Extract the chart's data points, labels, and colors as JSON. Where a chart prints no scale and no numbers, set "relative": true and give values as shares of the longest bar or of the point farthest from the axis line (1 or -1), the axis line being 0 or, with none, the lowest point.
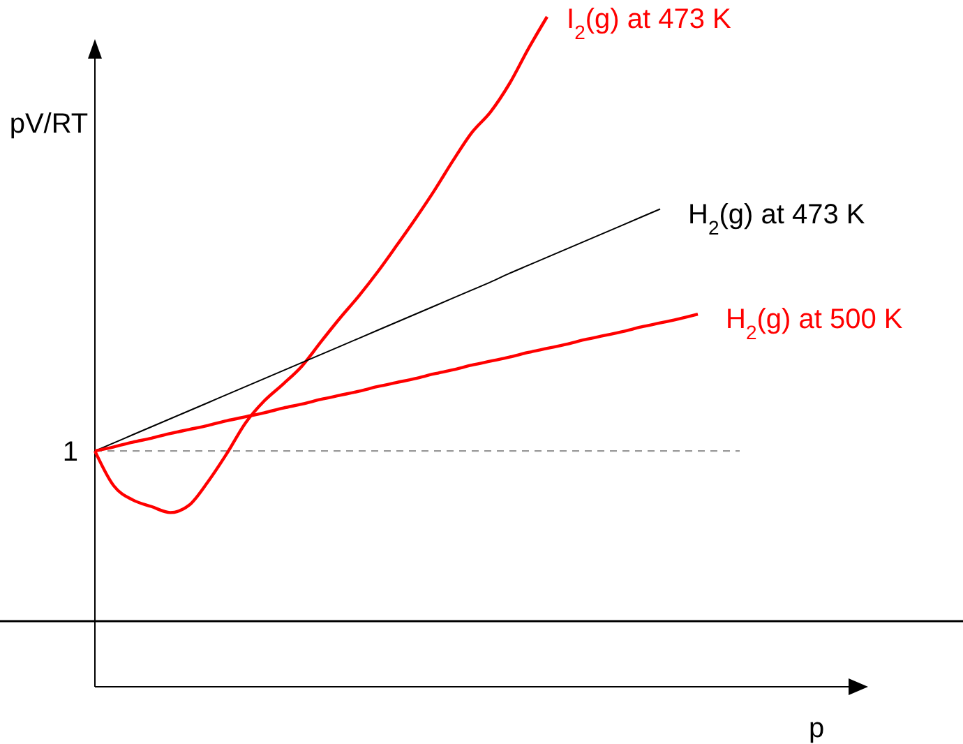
{
  "chart_data": {
    "type": "line",
    "relative": true,
    "xlabel": "p",
    "ylabel": "pV/RT",
    "categories": [
      null,
      null,
      null,
      null,
      null,
      null,
      null,
      null,
      null,
      null,
      null,
      null,
      null,
      null,
      null,
      null,
      null,
      null,
      null,
      null,
      null,
      null,
      null,
      null,
      null,
      null,
      null,
      null,
      null,
      null,
      null,
      null,
      null,
      null,
      null,
      null,
      null,
      null,
      null,
      null,
      null
    ],
    "series": [
      {
        "name": "I$_{2}$(g) at 473 K",
        "color": "#ff0000",
        "values": [
          0.352,
          0.3,
          0.279,
          0.269,
          0.26,
          0.271,
          0.306,
          0.348,
          0.394,
          0.427,
          0.452,
          0.479,
          0.515,
          0.55,
          0.583,
          0.619,
          0.658,
          0.698,
          0.74,
          0.785,
          0.827,
          0.858,
          0.9,
          0.952,
          1.0,
          null,
          null,
          null,
          null,
          null,
          null,
          null,
          null,
          null,
          null,
          null,
          null,
          null,
          null,
          null,
          null
        ]
      },
      {
        "name": "H$_{2}$(g) at 473 K",
        "color": "#000000",
        "values": [
          0.352,
          0.364,
          0.376,
          0.388,
          0.4,
          0.412,
          0.424,
          0.436,
          0.448,
          0.46,
          0.472,
          0.484,
          0.496,
          0.508,
          0.52,
          0.532,
          0.544,
          0.556,
          0.568,
          0.58,
          0.592,
          0.604,
          0.617,
          0.629,
          0.641,
          0.653,
          0.665,
          0.677,
          0.689,
          0.701,
          0.713,
          null,
          null,
          null,
          null,
          null,
          null,
          null,
          null,
          null,
          null
        ]
      },
      {
        "name": "H$_{2}$(g) at 500 K",
        "color": "#ff0000",
        "values": [
          0.352,
          0.358,
          0.365,
          0.371,
          0.378,
          0.384,
          0.39,
          0.397,
          0.403,
          0.409,
          0.416,
          0.422,
          0.429,
          0.435,
          0.441,
          0.448,
          0.454,
          0.46,
          0.467,
          0.473,
          0.48,
          0.486,
          0.492,
          0.499,
          0.505,
          0.511,
          0.518,
          0.524,
          0.53,
          0.537,
          0.543,
          0.549,
          0.556,
          null,
          null,
          null,
          null,
          null,
          null,
          null,
          null
        ]
      }
    ],
    "annotations": [
      "1"
    ],
    "ref_lines": [
      {
        "axis": "y",
        "value": 0.352,
        "color": "#999999",
        "line_style": "dashed"
      },
      {
        "axis": "y",
        "value": 0.098,
        "color": "#000000"
      }
    ]
  }
}
